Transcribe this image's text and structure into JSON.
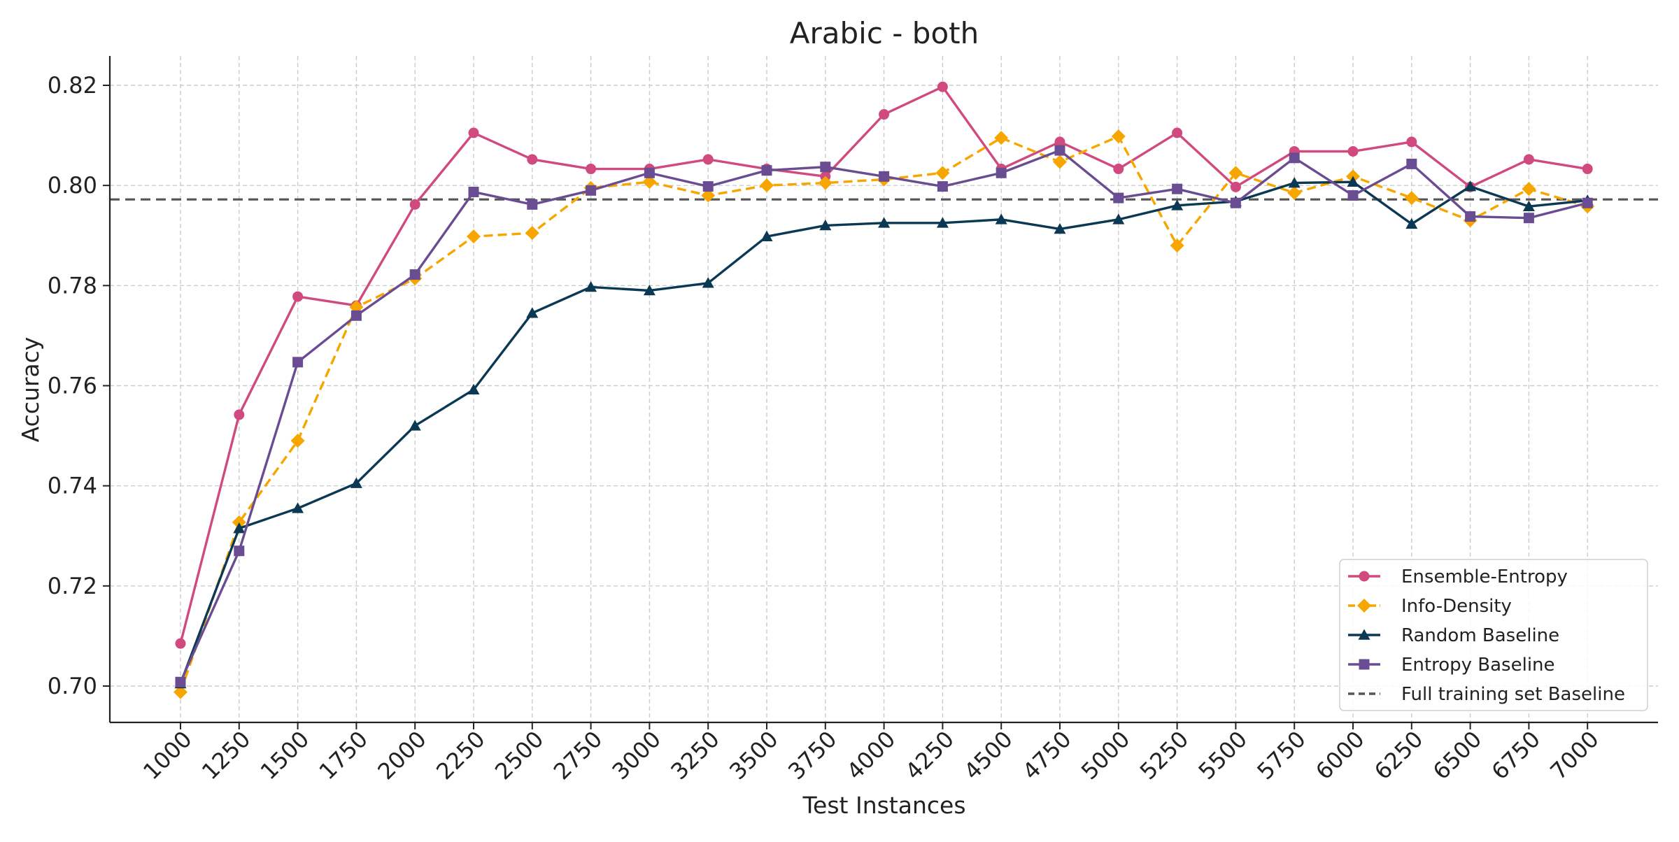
{
  "chart_data": {
    "type": "line",
    "title": "Arabic - both",
    "xlabel": "Test Instances",
    "ylabel": "Accuracy",
    "categories": [
      1000,
      1250,
      1500,
      1750,
      2000,
      2250,
      2500,
      2750,
      3000,
      3250,
      3500,
      3750,
      4000,
      4250,
      4500,
      4750,
      5000,
      5250,
      5500,
      5750,
      6000,
      6250,
      6500,
      6750,
      7000
    ],
    "x_tick_labels": [
      "1000",
      "1250",
      "1500",
      "1750",
      "2000",
      "2250",
      "2500",
      "2750",
      "3000",
      "3250",
      "3500",
      "3750",
      "4000",
      "4250",
      "4500",
      "4750",
      "5000",
      "5250",
      "5500",
      "5750",
      "6000",
      "6250",
      "6500",
      "6750",
      "7000"
    ],
    "y_ticks": [
      0.7,
      0.72,
      0.74,
      0.76,
      0.78,
      0.8,
      0.82
    ],
    "y_tick_labels": [
      "0.70",
      "0.72",
      "0.74",
      "0.76",
      "0.78",
      "0.80",
      "0.82"
    ],
    "ylim": [
      0.6925,
      0.826
    ],
    "grid": true,
    "legend_position": "lower-right",
    "series": [
      {
        "name": "Ensemble-Entropy",
        "color": "#d0497f",
        "marker": "circle",
        "line_style": "solid",
        "values": [
          0.7085,
          0.7542,
          0.7778,
          0.776,
          0.7962,
          0.8105,
          0.8052,
          0.8033,
          0.8033,
          0.8052,
          0.8033,
          0.8018,
          0.8142,
          0.8197,
          0.8033,
          0.8087,
          0.8033,
          0.8105,
          0.7997,
          0.8068,
          0.8068,
          0.8087,
          0.7997,
          0.8052,
          0.8033
        ]
      },
      {
        "name": "Info-Density",
        "color": "#f7a600",
        "marker": "diamond",
        "line_style": "dashed",
        "values": [
          0.6988,
          0.7327,
          0.749,
          0.7757,
          0.7814,
          0.7898,
          0.7905,
          0.7995,
          0.8007,
          0.798,
          0.8,
          0.8005,
          0.8012,
          0.8025,
          0.8095,
          0.8047,
          0.8098,
          0.788,
          0.8025,
          0.7985,
          0.8018,
          0.7975,
          0.793,
          0.7993,
          0.7958
        ]
      },
      {
        "name": "Random Baseline",
        "color": "#0b3954",
        "marker": "triangle",
        "line_style": "solid",
        "values": [
          0.7005,
          0.7315,
          0.7355,
          0.7405,
          0.752,
          0.7592,
          0.7745,
          0.7797,
          0.779,
          0.7805,
          0.7898,
          0.792,
          0.7925,
          0.7925,
          0.7932,
          0.7913,
          0.7932,
          0.796,
          0.7968,
          0.8005,
          0.8007,
          0.7923,
          0.7998,
          0.7958,
          0.797
        ]
      },
      {
        "name": "Entropy Baseline",
        "color": "#6a4c93",
        "marker": "square",
        "line_style": "solid",
        "values": [
          0.7008,
          0.727,
          0.7647,
          0.774,
          0.7822,
          0.7987,
          0.7962,
          0.799,
          0.8025,
          0.7998,
          0.803,
          0.8037,
          0.8018,
          0.7998,
          0.8025,
          0.807,
          0.7975,
          0.7993,
          0.7965,
          0.8055,
          0.798,
          0.8043,
          0.7938,
          0.7935,
          0.7965
        ]
      }
    ],
    "reference_line": {
      "name": "Full training set Baseline",
      "color": "#555555",
      "line_style": "dashed",
      "value": 0.7972
    }
  }
}
